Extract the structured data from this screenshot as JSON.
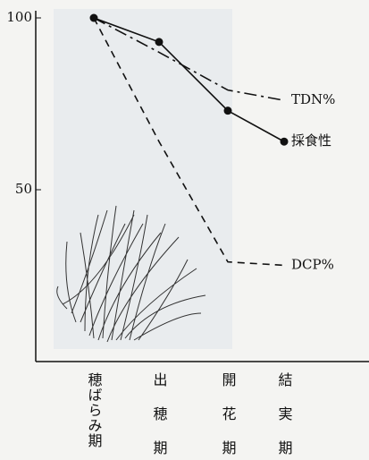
{
  "chart_data": {
    "type": "line",
    "categories": [
      "穂ばらみ期",
      "出穂期",
      "開花期",
      "結実期"
    ],
    "series": [
      {
        "name": "TDN%",
        "color": "#111111",
        "dash": "dashdot",
        "markers": false,
        "values": [
          100,
          90,
          79,
          76
        ]
      },
      {
        "name": "採食性",
        "color": "#111111",
        "dash": "solid",
        "markers": true,
        "values": [
          100,
          93,
          73,
          64
        ]
      },
      {
        "name": "DCP%",
        "color": "#111111",
        "dash": "dashed",
        "markers": false,
        "values": [
          100,
          64,
          29,
          28
        ]
      }
    ],
    "ylim": [
      0,
      100
    ],
    "yticks": [
      50,
      100
    ],
    "grid": false
  }
}
